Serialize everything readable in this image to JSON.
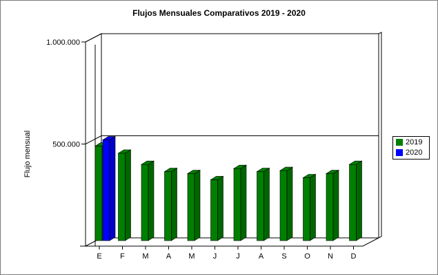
{
  "chart_data": {
    "type": "bar",
    "title": "Flujos Mensuales Comparativos 2019 - 2020",
    "xlabel": "",
    "ylabel": "Flujo mensual",
    "categories": [
      "E",
      "F",
      "M",
      "A",
      "M",
      "J",
      "J",
      "A",
      "S",
      "O",
      "N",
      "D"
    ],
    "ylim": [
      0,
      1000000
    ],
    "yticks": [
      {
        "value": 500000,
        "label": "500.000"
      },
      {
        "value": 1000000,
        "label": "1.000.000"
      }
    ],
    "series": [
      {
        "name": "2019",
        "color": "#008000",
        "values": [
          490000,
          455000,
          400000,
          365000,
          355000,
          325000,
          380000,
          365000,
          370000,
          335000,
          355000,
          400000
        ]
      },
      {
        "name": "2020",
        "color": "#0000ff",
        "values": [
          520000,
          null,
          null,
          null,
          null,
          null,
          null,
          null,
          null,
          null,
          null,
          null
        ]
      }
    ],
    "legend_position": "right",
    "grid": false,
    "three_d": true
  }
}
